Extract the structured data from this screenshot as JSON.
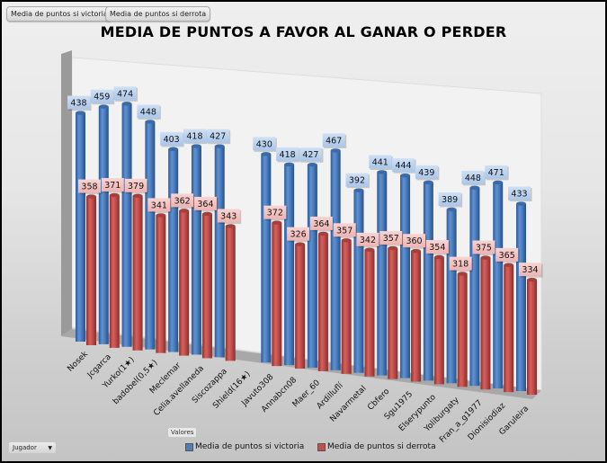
{
  "field_buttons": [
    "Media de puntos si victoria",
    "Media de puntos si derrota"
  ],
  "axis_field": "Valores",
  "row_field": "Jugador",
  "colors": {
    "victoria": "#4a7ebf",
    "derrota": "#c0504d"
  },
  "chart_data": {
    "type": "bar",
    "title": "MEDIA DE PUNTOS A FAVOR AL GANAR O PERDER",
    "legend_position": "bottom",
    "categories": [
      "Nosek",
      "Jcgarca",
      "Yurko(1★)",
      "badobel(0,5★)",
      "Meclemar",
      "Celia.avellaneda",
      "Siscozappa",
      "Shield(16★)",
      "Javuto308",
      "Annabcn08",
      "Maer_60",
      "Ardilluflí",
      "Navarmetal",
      "Cbfero",
      "Sgu1975",
      "Elserypunto",
      "Yoliburgaty",
      "Fran_a_g1977",
      "Dionisiodiaz",
      "Garuleira"
    ],
    "series": [
      {
        "name": "Media de puntos si victoria",
        "values": [
          438,
          459,
          474,
          448,
          403,
          418,
          427,
          null,
          430,
          418,
          427,
          467,
          392,
          441,
          444,
          439,
          389,
          448,
          471,
          433
        ]
      },
      {
        "name": "Media de puntos si derrota",
        "values": [
          358,
          371,
          379,
          341,
          362,
          364,
          343,
          null,
          372,
          326,
          364,
          357,
          342,
          357,
          360,
          354,
          318,
          375,
          365,
          334
        ]
      }
    ],
    "ylim": [
      0,
      500
    ],
    "grid": false
  }
}
